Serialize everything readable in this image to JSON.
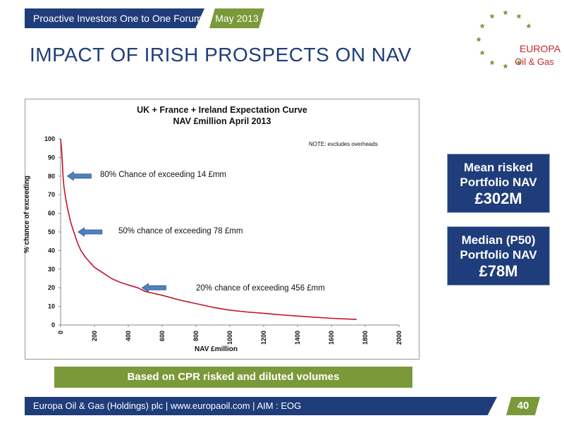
{
  "header": {
    "forum_label": "Proactive Investors One to One Forum",
    "date_label": "May 2013"
  },
  "slide_title": "IMPACT OF IRISH PROSPECTS ON NAV",
  "logo": {
    "line1": "EUROPA",
    "line2": "Oil & Gas",
    "star_color": "#7a9a3a",
    "text_color": "#c0282d"
  },
  "chart_data": {
    "type": "line",
    "title": "UK + France + Ireland Expectation Curve",
    "subtitle": "NAV £million April 2013",
    "note": "NOTE: excludes overheads",
    "xlabel": "NAV £million",
    "ylabel": "% chance of exceeding",
    "xlim": [
      0,
      2000
    ],
    "ylim": [
      0,
      100
    ],
    "x_ticks": [
      "0",
      "200",
      "400",
      "600",
      "800",
      "1000",
      "1200",
      "1400",
      "1600",
      "1800",
      "2000"
    ],
    "y_ticks": [
      "0",
      "10",
      "20",
      "30",
      "40",
      "50",
      "60",
      "70",
      "80",
      "90",
      "100"
    ],
    "grid": false,
    "series": [
      {
        "color": "#c0142a",
        "x": [
          0,
          5,
          10,
          14,
          20,
          30,
          40,
          50,
          60,
          78,
          100,
          120,
          150,
          200,
          250,
          300,
          350,
          400,
          456,
          500,
          550,
          600,
          700,
          800,
          900,
          1000,
          1100,
          1200,
          1300,
          1400,
          1500,
          1600,
          1700,
          1750
        ],
        "y": [
          100,
          95,
          88,
          80,
          74,
          68,
          63,
          59,
          55,
          50,
          44,
          40,
          36,
          31,
          28,
          25,
          23,
          21.5,
          20,
          18,
          17,
          16,
          13.5,
          11.5,
          9.5,
          8,
          7,
          6.3,
          5.5,
          4.8,
          4.2,
          3.6,
          3.2,
          3
        ]
      }
    ],
    "annotations": [
      {
        "text": "80% Chance of exceeding 14 £mm",
        "x": 14,
        "y": 80
      },
      {
        "text": "50% chance of exceeding 78 £mm",
        "x": 78,
        "y": 50
      },
      {
        "text": "20% chance of exceeding 456 £mm",
        "x": 456,
        "y": 20
      }
    ]
  },
  "side_boxes": [
    {
      "line1": "Mean risked",
      "line2": "Portfolio NAV",
      "value": "£302M"
    },
    {
      "line1": "Median (P50)",
      "line2": "Portfolio NAV",
      "value": "£78M"
    }
  ],
  "caption": "Based on CPR risked and diluted volumes",
  "footer": {
    "text": "Europa Oil & Gas (Holdings) plc | www.europaoil.com  | AIM : EOG",
    "page_number": "40"
  },
  "colors": {
    "navy": "#1f3d7a",
    "green": "#7a9a3a",
    "arrow": "#4f81bd"
  }
}
